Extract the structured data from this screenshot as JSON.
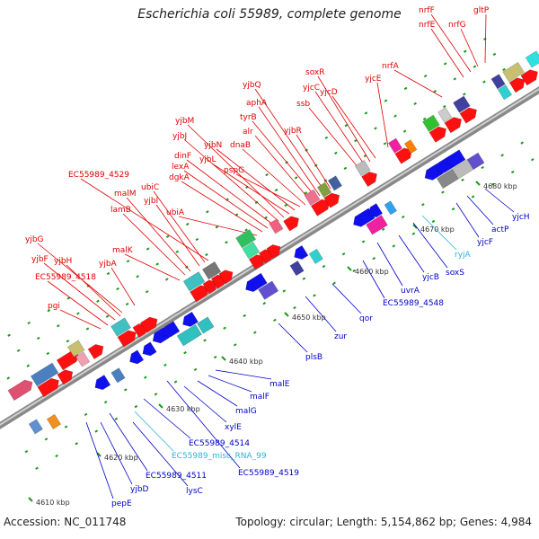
{
  "title": "Escherichia coli 55989, complete genome",
  "accession": "Accession: NC_011748",
  "topology": "Topology: circular; Length: 5,154,862 bp; Genes: 4,984",
  "kbp_ticks": [
    "4610 kbp",
    "4620 kbp",
    "4630 kbp",
    "4640 kbp",
    "4650 kbp",
    "4660 kbp",
    "4670 kbp",
    "4680 kbp"
  ],
  "top_labels": [
    "pgi",
    "EC55989_4518",
    "yjbF",
    "yjbH",
    "yjbG",
    "yjbA",
    "malK",
    "lamB",
    "malM",
    "yjbI",
    "ubiC",
    "EC55989_4529",
    "ubiA",
    "dgkA",
    "lexA",
    "dinF",
    "yjbJ",
    "yjbM",
    "yjbL",
    "yjbN",
    "pspG",
    "dnaB",
    "alr",
    "tyrB",
    "aphA",
    "yjbQ",
    "yjbR",
    "ssb",
    "yjcC",
    "soxR",
    "yjcD",
    "yjcE",
    "nrfA",
    "nrfE",
    "nrfF",
    "nrfG",
    "gltP"
  ],
  "bottom_labels": [
    "pepE",
    "yjbD",
    "lysC",
    "EC55989_4511",
    "EC55989_misc_RNA_99",
    "EC55989_4514",
    "EC55989_4519",
    "xylE",
    "malG",
    "malF",
    "malE",
    "plsB",
    "zur",
    "qor",
    "EC55989_4548",
    "uvrA",
    "yjcB",
    "soxS",
    "ryjA",
    "yjcF",
    "actP",
    "yjcH"
  ],
  "colors": {
    "forward": "#ff0000",
    "reverse": "#0000ee",
    "backbone": "#999999",
    "cyan_label": "#2bb3d8"
  }
}
